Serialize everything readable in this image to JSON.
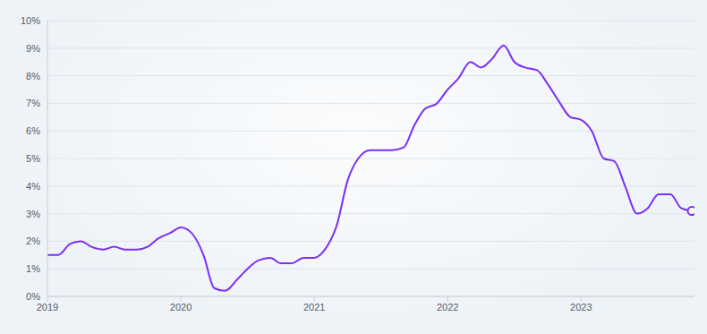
{
  "chart_data": {
    "type": "line",
    "x": [
      2019,
      2019.08,
      2019.17,
      2019.25,
      2019.33,
      2019.42,
      2019.5,
      2019.58,
      2019.67,
      2019.75,
      2019.83,
      2019.92,
      2020,
      2020.08,
      2020.17,
      2020.25,
      2020.33,
      2020.42,
      2020.5,
      2020.58,
      2020.67,
      2020.75,
      2020.83,
      2020.92,
      2021,
      2021.08,
      2021.17,
      2021.25,
      2021.33,
      2021.42,
      2021.5,
      2021.58,
      2021.67,
      2021.75,
      2021.83,
      2021.92,
      2022,
      2022.08,
      2022.17,
      2022.25,
      2022.33,
      2022.42,
      2022.5,
      2022.58,
      2022.67,
      2022.75,
      2022.83,
      2022.92,
      2023,
      2023.08,
      2023.17,
      2023.25,
      2023.33,
      2023.42,
      2023.5,
      2023.58,
      2023.67,
      2023.75,
      2023.83
    ],
    "values": [
      1.5,
      1.5,
      1.9,
      2.0,
      1.8,
      1.7,
      1.8,
      1.7,
      1.7,
      1.8,
      2.1,
      2.3,
      2.5,
      2.3,
      1.5,
      0.3,
      0.2,
      0.6,
      1.0,
      1.3,
      1.4,
      1.2,
      1.2,
      1.4,
      1.4,
      1.7,
      2.6,
      4.2,
      5.0,
      5.3,
      5.3,
      5.3,
      5.4,
      6.2,
      6.8,
      7.0,
      7.5,
      7.9,
      8.5,
      8.3,
      8.6,
      9.1,
      8.5,
      8.3,
      8.2,
      7.7,
      7.1,
      6.5,
      6.4,
      6.0,
      5.0,
      4.9,
      4.0,
      3.0,
      3.2,
      3.7,
      3.7,
      3.2,
      3.1
    ],
    "color": "#7b2ff7",
    "marker": "end_circle",
    "xlim": [
      2019,
      2023.85
    ],
    "xticks": [
      2019,
      2020,
      2021,
      2022,
      2023
    ],
    "ylim": [
      0,
      10
    ],
    "yticks": [
      {
        "value": 0,
        "label": "0%"
      },
      {
        "value": 1,
        "label": "1%"
      },
      {
        "value": 2,
        "label": "2%"
      },
      {
        "value": 3,
        "label": "3%"
      },
      {
        "value": 4,
        "label": "4%"
      },
      {
        "value": 5,
        "label": "5%"
      },
      {
        "value": 6,
        "label": "6%"
      },
      {
        "value": 7,
        "label": "7%"
      },
      {
        "value": 8,
        "label": "8%"
      },
      {
        "value": 9,
        "label": "9%"
      },
      {
        "value": 10,
        "label": "10%"
      }
    ],
    "grid": true
  }
}
